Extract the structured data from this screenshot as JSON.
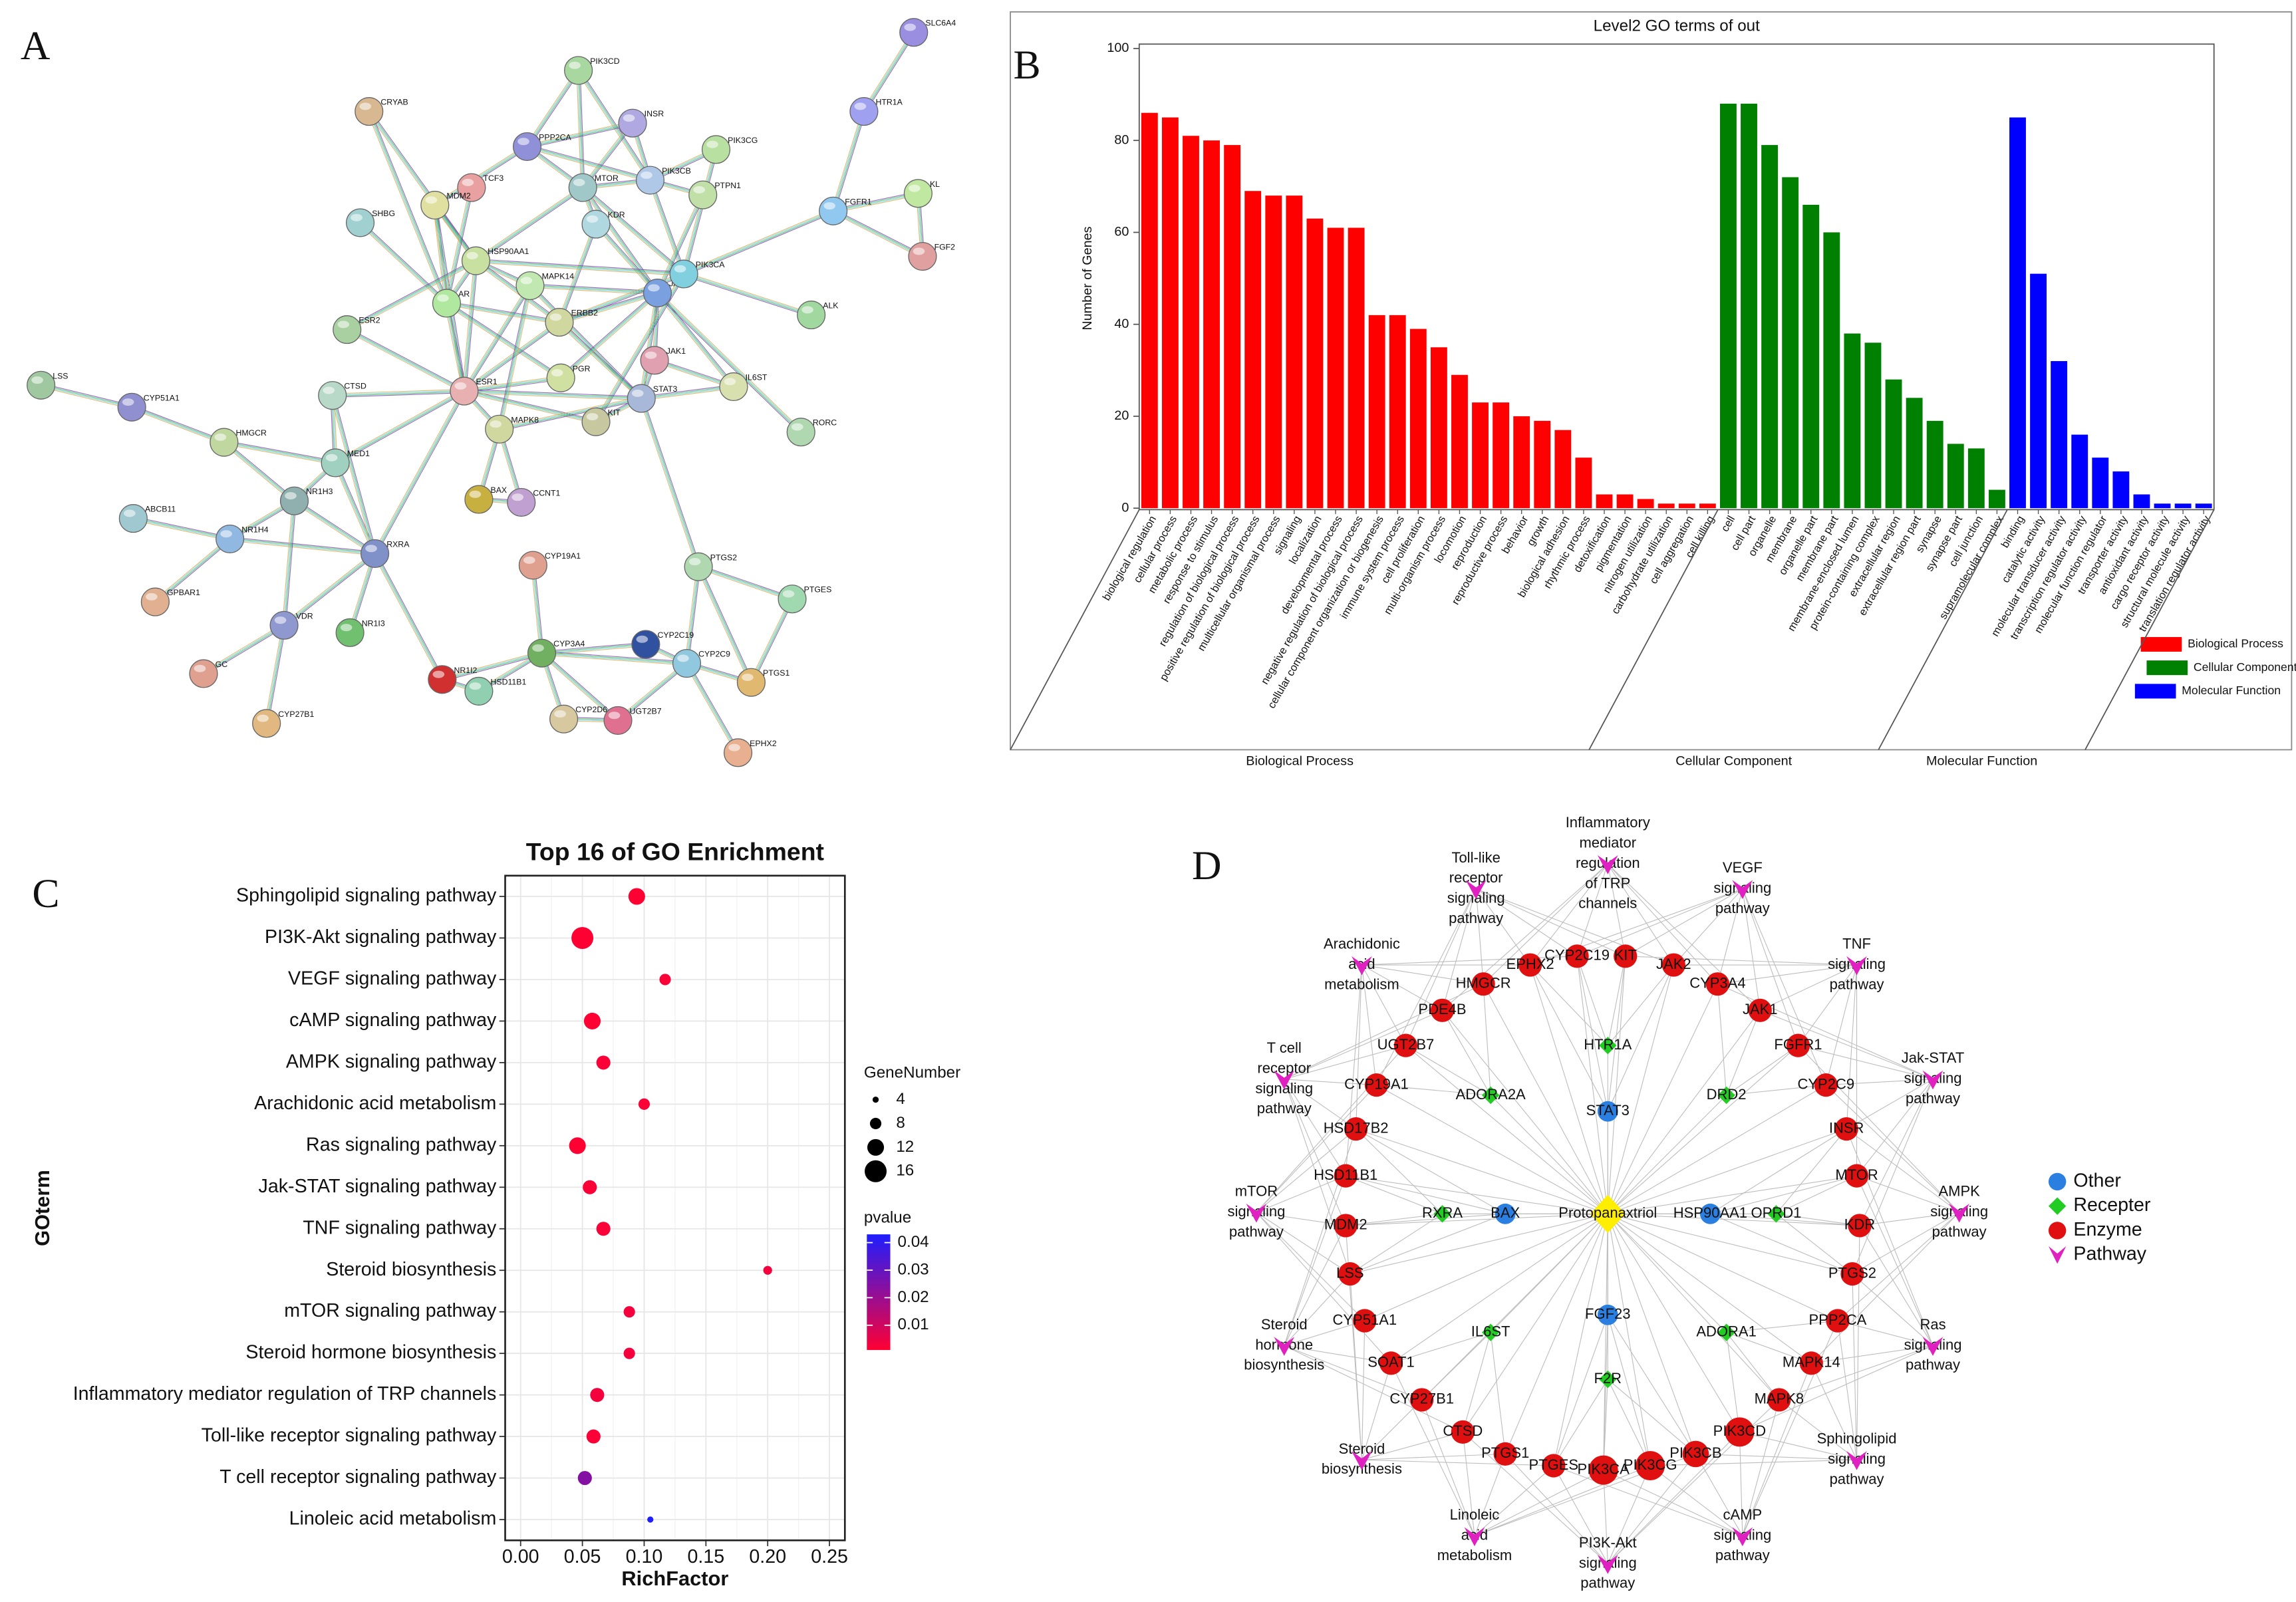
{
  "panel_labels": [
    "A",
    "B",
    "C",
    "D"
  ],
  "network_a": {
    "nodes": [
      "SLC6A4",
      "HTR1A",
      "PIK3CD",
      "CRYAB",
      "INSR",
      "PPP2CA",
      "PIK3CG",
      "TCF3",
      "MTOR",
      "PIK3CB",
      "PTPN1",
      "MDM2",
      "FGFR1",
      "KL",
      "SHBG",
      "KDR",
      "FGF2",
      "HSP90AA1",
      "MAPK14",
      "JAK2",
      "PIK3CA",
      "AR",
      "ESR2",
      "ERBB2",
      "ALK",
      "JAK1",
      "PGR",
      "IL6ST",
      "LSS",
      "CTSD",
      "ESR1",
      "KIT",
      "STAT3",
      "CYP51A1",
      "HMGCR",
      "MAPK8",
      "RORC",
      "MED1",
      "NR1H3",
      "BAX",
      "CCNT1",
      "ABCB11",
      "NR1H4",
      "RXRA",
      "CYP19A1",
      "PTGS2",
      "GPBAR1",
      "PTGES",
      "VDR",
      "NR1I3",
      "CYP3A4",
      "CYP2C19",
      "CYP2C9",
      "GC",
      "NR1I2",
      "HSD11B1",
      "PTGS1",
      "CYP2D6",
      "UGT2B7",
      "CYP27B1",
      "EPHX2"
    ]
  },
  "chart_data": [
    {
      "type": "bar",
      "title": "Level2 GO terms of out",
      "y_label": "Number of Genes",
      "categories": [
        "biological regulation",
        "cellular process",
        "metabolic process",
        "response to stimulus",
        "regulation of biological process",
        "positive regulation of biological process",
        "multicellular organismal process",
        "signaling",
        "localization",
        "developmental process",
        "negative regulation of biological process",
        "cellular component organization or biogenesis",
        "immune system process",
        "cell proliferation",
        "multi-organism process",
        "locomotion",
        "reproduction",
        "reproductive process",
        "behavior",
        "growth",
        "biological adhesion",
        "rhythmic process",
        "detoxification",
        "pigmentation",
        "nitrogen utilization",
        "carbohydrate utilization",
        "cell aggregation",
        "cell killing",
        "cell",
        "cell part",
        "organelle",
        "membrane",
        "organelle part",
        "membrane part",
        "membrane-enclosed lumen",
        "protein-containing complex",
        "extracellular region",
        "extracellular region part",
        "synapse",
        "synapse part",
        "cell junction",
        "supramolecular complex",
        "binding",
        "catalytic activity",
        "molecular transducer activity",
        "transcription regulator activity",
        "molecular function regulator",
        "transporter activity",
        "antioxidant activity",
        "cargo receptor activity",
        "structural molecule activity",
        "translation regulator activity"
      ],
      "series": [
        {
          "name": "Biological Process",
          "color": "#ff0000",
          "values": [
            86,
            85,
            81,
            80,
            79,
            69,
            68,
            68,
            63,
            61,
            61,
            42,
            42,
            39,
            35,
            29,
            23,
            23,
            20,
            19,
            17,
            11,
            3,
            3,
            2,
            1,
            1,
            1,
            null,
            null,
            null,
            null,
            null,
            null,
            null,
            null,
            null,
            null,
            null,
            null,
            null,
            null,
            null,
            null,
            null,
            null,
            null,
            null,
            null,
            null,
            null,
            null
          ]
        },
        {
          "name": "Cellular Component",
          "color": "#008000",
          "values": [
            null,
            null,
            null,
            null,
            null,
            null,
            null,
            null,
            null,
            null,
            null,
            null,
            null,
            null,
            null,
            null,
            null,
            null,
            null,
            null,
            null,
            null,
            null,
            null,
            null,
            null,
            null,
            null,
            88,
            88,
            79,
            72,
            66,
            60,
            38,
            36,
            28,
            24,
            19,
            14,
            13,
            4,
            null,
            null,
            null,
            null,
            null,
            null,
            null,
            null,
            null,
            null
          ]
        },
        {
          "name": "Molecular Function",
          "color": "#0000ff",
          "values": [
            null,
            null,
            null,
            null,
            null,
            null,
            null,
            null,
            null,
            null,
            null,
            null,
            null,
            null,
            null,
            null,
            null,
            null,
            null,
            null,
            null,
            null,
            null,
            null,
            null,
            null,
            null,
            null,
            null,
            null,
            null,
            null,
            null,
            null,
            null,
            null,
            null,
            null,
            null,
            null,
            null,
            null,
            85,
            51,
            32,
            16,
            11,
            8,
            3,
            1,
            1,
            1
          ]
        }
      ],
      "ylim": [
        0,
        100
      ],
      "yticks": [
        0,
        20,
        40,
        60,
        80,
        100
      ]
    },
    {
      "type": "dot",
      "title": "Top 16 of GO Enrichment",
      "x_label": "RichFactor",
      "y_label": "GOterm",
      "categories": [
        "Sphingolipid signaling pathway",
        "PI3K-Akt signaling pathway",
        "VEGF signaling pathway",
        "cAMP signaling pathway",
        "AMPK signaling pathway",
        "Arachidonic acid metabolism",
        "Ras signaling pathway",
        "Jak-STAT signaling pathway",
        "TNF signaling pathway",
        "Steroid biosynthesis",
        "mTOR signaling pathway",
        "Steroid hormone biosynthesis",
        "Inflammatory mediator regulation of TRP channels",
        "Toll-like receptor signaling pathway",
        "T cell receptor signaling pathway",
        "Linoleic acid metabolism"
      ],
      "values": [
        0.094,
        0.05,
        0.117,
        0.058,
        0.067,
        0.1,
        0.046,
        0.056,
        0.067,
        0.2,
        0.088,
        0.088,
        0.062,
        0.059,
        0.052,
        0.105
      ],
      "sizes": [
        12,
        16,
        8,
        12,
        10,
        8,
        12,
        10,
        10,
        6,
        8,
        8,
        10,
        10,
        10,
        4
      ],
      "pvalues": [
        0.001,
        0.001,
        0.002,
        0.001,
        0.002,
        0.002,
        0.001,
        0.002,
        0.002,
        0.003,
        0.003,
        0.003,
        0.003,
        0.002,
        0.024,
        0.043
      ],
      "xlim": [
        -0.0125,
        0.2625
      ],
      "xticks": [
        {
          "value": 0,
          "label": "0.00"
        },
        0.05,
        {
          "value": 0.1,
          "label": "0.10"
        },
        0.15,
        {
          "value": 0.2,
          "label": "0.20"
        },
        0.25
      ],
      "size_title": "GeneNumber",
      "size_legend": [
        4,
        8,
        12,
        16
      ],
      "color_title": "pvalue",
      "color_lim": [
        0.001,
        0.043
      ],
      "color_ticks": [
        0.01,
        0.02,
        0.03,
        0.04
      ],
      "color_low": "#ff0033",
      "color_high": "#1e1eff",
      "grid": true
    }
  ],
  "network_d": {
    "center": "Protopanaxtriol",
    "center_color": "#ffee00",
    "legend": [
      {
        "name": "Other",
        "color": "#2b7fe0"
      },
      {
        "name": "Recepter",
        "color": "#22cc22"
      },
      {
        "name": "Enzyme",
        "color": "#e01010"
      },
      {
        "name": "Pathway",
        "color": "#e020c0"
      }
    ],
    "nodes": [
      {
        "type": "Pathway",
        "lines": [
          "Inflammatory",
          "mediator",
          "regulation",
          "of TRP",
          "channels"
        ]
      },
      {
        "type": "Pathway",
        "lines": [
          "Toll-like",
          "receptor",
          "signaling",
          "pathway"
        ]
      },
      {
        "type": "Pathway",
        "lines": [
          "VEGF",
          "signaling",
          "pathway"
        ]
      },
      {
        "type": "Pathway",
        "lines": [
          "Arachidonic",
          "acid",
          "metabolism"
        ]
      },
      {
        "type": "Pathway",
        "lines": [
          "TNF",
          "signaling",
          "pathway"
        ]
      },
      {
        "type": "Pathway",
        "lines": [
          "T cell",
          "receptor",
          "signaling",
          "pathway"
        ]
      },
      {
        "type": "Pathway",
        "lines": [
          "Jak-STAT",
          "signaling",
          "pathway"
        ]
      },
      {
        "type": "Pathway",
        "lines": [
          "mTOR",
          "signaling",
          "pathway"
        ]
      },
      {
        "type": "Pathway",
        "lines": [
          "AMPK",
          "signaling",
          "pathway"
        ]
      },
      {
        "type": "Pathway",
        "lines": [
          "Steroid",
          "hormone",
          "biosynthesis"
        ]
      },
      {
        "type": "Pathway",
        "lines": [
          "Ras",
          "signaling",
          "pathway"
        ]
      },
      {
        "type": "Pathway",
        "lines": [
          "Steroid",
          "biosynthesis"
        ]
      },
      {
        "type": "Pathway",
        "lines": [
          "Sphingolipid",
          "signaling",
          "pathway"
        ]
      },
      {
        "type": "Pathway",
        "lines": [
          "Linoleic",
          "acid",
          "metabolism"
        ]
      },
      {
        "type": "Pathway",
        "lines": [
          "PI3K-Akt",
          "signaling",
          "pathway"
        ]
      },
      {
        "type": "Pathway",
        "lines": [
          "cAMP",
          "signaling",
          "pathway"
        ]
      },
      {
        "type": "Enzyme",
        "label": "CYP2C19"
      },
      {
        "type": "Enzyme",
        "label": "KIT"
      },
      {
        "type": "Enzyme",
        "label": "EPHX2"
      },
      {
        "type": "Enzyme",
        "label": "JAK2"
      },
      {
        "type": "Enzyme",
        "label": "HMGCR"
      },
      {
        "type": "Enzyme",
        "label": "CYP3A4"
      },
      {
        "type": "Enzyme",
        "label": "PDE4B"
      },
      {
        "type": "Enzyme",
        "label": "JAK1"
      },
      {
        "type": "Enzyme",
        "label": "UGT2B7"
      },
      {
        "type": "Enzyme",
        "label": "FGFR1"
      },
      {
        "type": "Enzyme",
        "label": "CYP19A1"
      },
      {
        "type": "Enzyme",
        "label": "CYP2C9"
      },
      {
        "type": "Enzyme",
        "label": "HSD17B2"
      },
      {
        "type": "Enzyme",
        "label": "INSR"
      },
      {
        "type": "Enzyme",
        "label": "HSD11B1"
      },
      {
        "type": "Enzyme",
        "label": "MTOR"
      },
      {
        "type": "Enzyme",
        "label": "MDM2"
      },
      {
        "type": "Enzyme",
        "label": "KDR"
      },
      {
        "type": "Enzyme",
        "label": "LSS"
      },
      {
        "type": "Enzyme",
        "label": "PTGS2"
      },
      {
        "type": "Enzyme",
        "label": "CYP51A1"
      },
      {
        "type": "Enzyme",
        "label": "PPP2CA"
      },
      {
        "type": "Enzyme",
        "label": "SOAT1"
      },
      {
        "type": "Enzyme",
        "label": "MAPK14"
      },
      {
        "type": "Enzyme",
        "label": "CYP27B1"
      },
      {
        "type": "Enzyme",
        "label": "MAPK8"
      },
      {
        "type": "Enzyme",
        "label": "CTSD"
      },
      {
        "type": "Enzyme",
        "label": "PIK3CD"
      },
      {
        "type": "Enzyme",
        "label": "PTGS1"
      },
      {
        "type": "Enzyme",
        "label": "PIK3CB"
      },
      {
        "type": "Enzyme",
        "label": "PTGES"
      },
      {
        "type": "Enzyme",
        "label": "PIK3CG"
      },
      {
        "type": "Enzyme",
        "label": "PIK3CA"
      },
      {
        "type": "Recepter",
        "label": "HTR1A"
      },
      {
        "type": "Recepter",
        "label": "ADORA2A"
      },
      {
        "type": "Recepter",
        "label": "DRD2"
      },
      {
        "type": "Recepter",
        "label": "RXRA"
      },
      {
        "type": "Recepter",
        "label": "OPRD1"
      },
      {
        "type": "Recepter",
        "label": "IL6ST"
      },
      {
        "type": "Recepter",
        "label": "ADORA1"
      },
      {
        "type": "Recepter",
        "label": "F2R"
      },
      {
        "type": "Other",
        "label": "STAT3"
      },
      {
        "type": "Other",
        "label": "BAX"
      },
      {
        "type": "Other",
        "label": "HSP90AA1"
      },
      {
        "type": "Other",
        "label": "FGF23"
      }
    ]
  }
}
